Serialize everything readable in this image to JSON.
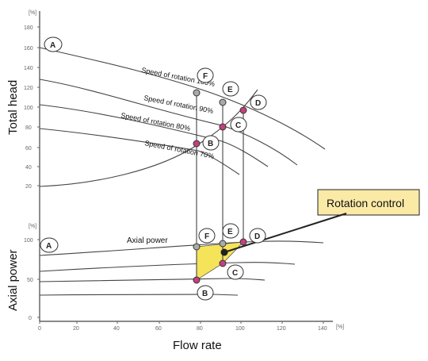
{
  "axes": {
    "top_y_label": "Total head",
    "bottom_y_label": "Axial power",
    "x_label": "Flow rate",
    "unit_symbol": "[%]",
    "x_ticks": [
      "0",
      "20",
      "40",
      "60",
      "80",
      "100",
      "120",
      "140"
    ],
    "top_y_ticks": [
      "20",
      "40",
      "60",
      "80",
      "100",
      "120",
      "140",
      "160",
      "180"
    ],
    "bottom_y_ticks": [
      "0",
      "50",
      "100"
    ]
  },
  "curve_labels": {
    "speed100": "Speed of rotation 100%",
    "speed90": "Speed of rotation 90%",
    "speed80": "Speed of rotation 80%",
    "speed70": "Speed of rotation 70%"
  },
  "labels": {
    "axial_power": "Axial power",
    "rotation_control": "Rotation control"
  },
  "points": {
    "top": {
      "A": "A",
      "B": "B",
      "C": "C",
      "D": "D",
      "E": "E",
      "F": "F"
    },
    "bottom": {
      "A": "A",
      "B": "B",
      "C": "C",
      "D": "D",
      "E": "E",
      "F": "F"
    }
  },
  "colors": {
    "magenta_point": "#c2417e",
    "grey_point": "#aaaaaa",
    "shaded_region": "#f5e35a",
    "callout_fill": "#fbe9a6",
    "callout_border": "#222222"
  }
}
